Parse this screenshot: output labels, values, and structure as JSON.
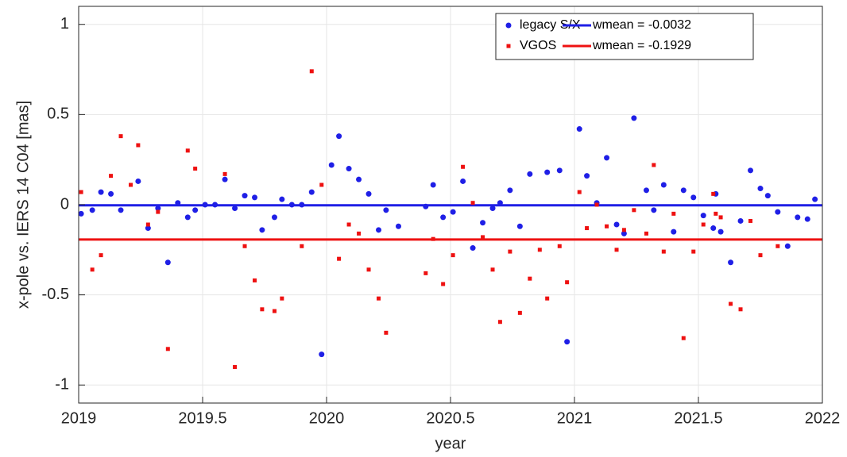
{
  "chart_data": {
    "type": "scatter",
    "xlabel": "year",
    "ylabel": "x-pole vs. IERS 14 C04 [mas]",
    "xlim": [
      2019,
      2022
    ],
    "xticks": [
      2019,
      2019.5,
      2020,
      2020.5,
      2021,
      2021.5,
      2022
    ],
    "ylim": [
      -1.1,
      1.1
    ],
    "yticks": [
      -1,
      -0.5,
      0,
      0.5,
      1
    ],
    "grid": true,
    "legend": "northeast",
    "series": [
      {
        "name": "legacy S/X",
        "color": "#1f1fe6",
        "marker": "circle",
        "x": [
          2019.01,
          2019.055,
          2019.09,
          2019.13,
          2019.17,
          2019.24,
          2019.28,
          2019.32,
          2019.36,
          2019.4,
          2019.44,
          2019.47,
          2019.51,
          2019.55,
          2019.59,
          2019.63,
          2019.67,
          2019.71,
          2019.74,
          2019.79,
          2019.82,
          2019.86,
          2019.9,
          2019.94,
          2019.98,
          2020.02,
          2020.05,
          2020.09,
          2020.13,
          2020.17,
          2020.21,
          2020.24,
          2020.29,
          2020.4,
          2020.43,
          2020.47,
          2020.51,
          2020.55,
          2020.59,
          2020.63,
          2020.67,
          2020.7,
          2020.74,
          2020.78,
          2020.82,
          2020.89,
          2020.94,
          2020.97,
          2021.02,
          2021.05,
          2021.09,
          2021.13,
          2021.17,
          2021.2,
          2021.24,
          2021.29,
          2021.32,
          2021.36,
          2021.4,
          2021.44,
          2021.48,
          2021.52,
          2021.56,
          2021.57,
          2021.59,
          2021.63,
          2021.67,
          2021.71,
          2021.75,
          2021.78,
          2021.82,
          2021.86,
          2021.9,
          2021.94,
          2021.97
        ],
        "values": [
          -0.05,
          -0.03,
          0.07,
          0.06,
          -0.03,
          0.13,
          -0.13,
          -0.02,
          -0.32,
          0.01,
          -0.07,
          -0.03,
          0.0,
          0.0,
          0.14,
          -0.02,
          0.05,
          0.04,
          -0.14,
          -0.07,
          0.03,
          0.0,
          0.0,
          0.07,
          -0.83,
          0.22,
          0.38,
          0.2,
          0.14,
          0.06,
          -0.14,
          -0.03,
          -0.12,
          -0.01,
          0.11,
          -0.07,
          -0.04,
          0.13,
          -0.24,
          -0.1,
          -0.02,
          0.01,
          0.08,
          -0.12,
          0.17,
          0.18,
          0.19,
          -0.76,
          0.42,
          0.16,
          0.01,
          0.26,
          -0.11,
          -0.16,
          0.48,
          0.08,
          -0.03,
          0.11,
          -0.15,
          0.08,
          0.04,
          -0.06,
          -0.13,
          0.06,
          -0.15,
          -0.32,
          -0.09,
          0.19,
          0.09,
          0.05,
          -0.04,
          -0.23,
          -0.07,
          -0.08,
          0.03
        ]
      },
      {
        "name": "VGOS",
        "color": "#ee1111",
        "marker": "square",
        "x": [
          2019.01,
          2019.055,
          2019.09,
          2019.13,
          2019.17,
          2019.21,
          2019.24,
          2019.28,
          2019.32,
          2019.36,
          2019.44,
          2019.47,
          2019.59,
          2019.63,
          2019.67,
          2019.71,
          2019.74,
          2019.79,
          2019.82,
          2019.9,
          2019.94,
          2019.98,
          2020.05,
          2020.09,
          2020.13,
          2020.17,
          2020.21,
          2020.24,
          2020.4,
          2020.43,
          2020.47,
          2020.51,
          2020.55,
          2020.59,
          2020.63,
          2020.67,
          2020.7,
          2020.74,
          2020.78,
          2020.82,
          2020.86,
          2020.89,
          2020.94,
          2020.97,
          2021.02,
          2021.05,
          2021.09,
          2021.13,
          2021.17,
          2021.2,
          2021.24,
          2021.29,
          2021.32,
          2021.36,
          2021.4,
          2021.44,
          2021.48,
          2021.52,
          2021.56,
          2021.57,
          2021.59,
          2021.63,
          2021.67,
          2021.71,
          2021.75,
          2021.82
        ],
        "values": [
          0.07,
          -0.36,
          -0.28,
          0.16,
          0.38,
          0.11,
          0.33,
          -0.11,
          -0.04,
          -0.8,
          0.3,
          0.2,
          0.17,
          -0.9,
          -0.23,
          -0.42,
          -0.58,
          -0.59,
          -0.52,
          -0.23,
          0.74,
          0.11,
          -0.3,
          -0.11,
          -0.16,
          -0.36,
          -0.52,
          -0.71,
          -0.38,
          -0.19,
          -0.44,
          -0.28,
          0.21,
          0.01,
          -0.18,
          -0.36,
          -0.65,
          -0.26,
          -0.6,
          -0.41,
          -0.25,
          -0.52,
          -0.23,
          -0.43,
          0.07,
          -0.13,
          0.0,
          -0.12,
          -0.25,
          -0.14,
          -0.03,
          -0.16,
          0.22,
          -0.26,
          -0.05,
          -0.74,
          -0.26,
          -0.11,
          0.06,
          -0.05,
          -0.07,
          -0.55,
          -0.58,
          -0.09,
          -0.28,
          -0.23
        ]
      }
    ],
    "hlines": [
      {
        "name": "wmean = -0.0032",
        "color": "#1f1fe6",
        "value": -0.0032
      },
      {
        "name": "wmean = -0.1929",
        "color": "#ee1111",
        "value": -0.1929
      }
    ]
  }
}
